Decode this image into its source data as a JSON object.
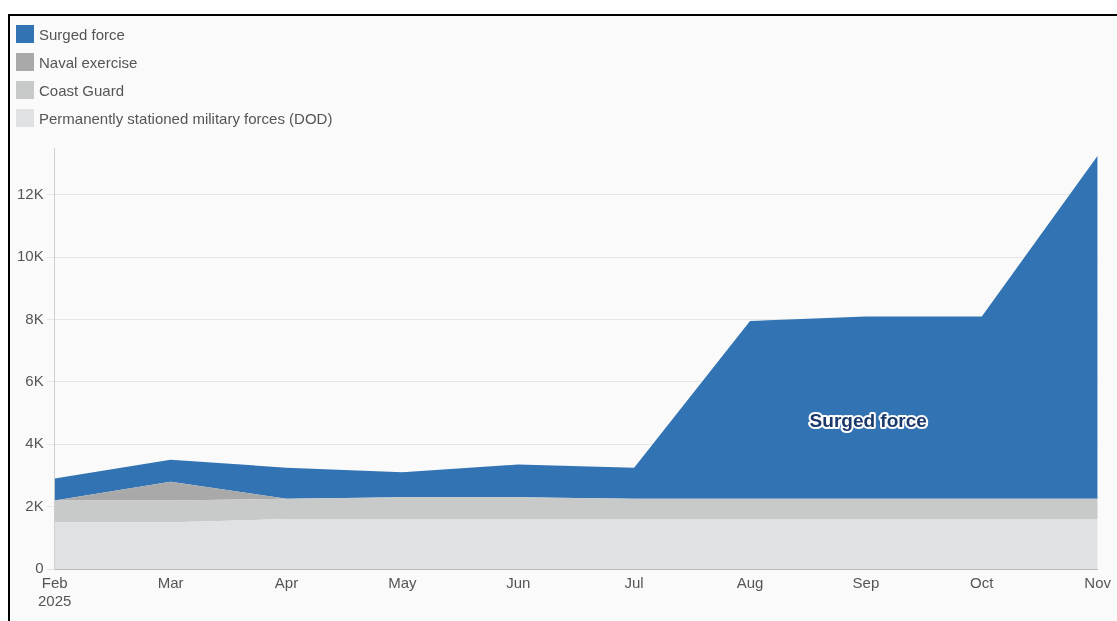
{
  "chart_data": {
    "type": "area",
    "stacked": true,
    "categories": [
      "Feb 2025",
      "Mar",
      "Apr",
      "May",
      "Jun",
      "Jul",
      "Aug",
      "Sep",
      "Oct",
      "Nov"
    ],
    "series": [
      {
        "name": "Permanently stationed military forces (DOD)",
        "color": "#e0e1e2",
        "values": [
          1500,
          1500,
          1600,
          1600,
          1600,
          1600,
          1600,
          1600,
          1600,
          1600
        ]
      },
      {
        "name": "Coast Guard",
        "color": "#c8c9c9",
        "values": [
          700,
          700,
          650,
          700,
          700,
          650,
          650,
          650,
          650,
          650
        ]
      },
      {
        "name": "Naval exercise",
        "color": "#a9a9aa",
        "values": [
          0,
          600,
          0,
          0,
          0,
          0,
          0,
          0,
          0,
          0
        ]
      },
      {
        "name": "Surged force",
        "color": "#3274b3",
        "values": [
          700,
          700,
          1000,
          800,
          1050,
          1000,
          5700,
          5850,
          5850,
          11000
        ]
      }
    ],
    "ylim": [
      0,
      13500
    ],
    "yticks": [
      {
        "value": 0,
        "label": "0"
      },
      {
        "value": 2000,
        "label": "2K"
      },
      {
        "value": 4000,
        "label": "4K"
      },
      {
        "value": 6000,
        "label": "6K"
      },
      {
        "value": 8000,
        "label": "8K"
      },
      {
        "value": 10000,
        "label": "10K"
      },
      {
        "value": 12000,
        "label": "12K"
      }
    ],
    "grid": "y",
    "legend": "top left",
    "annotations": [
      "Surged force"
    ]
  }
}
